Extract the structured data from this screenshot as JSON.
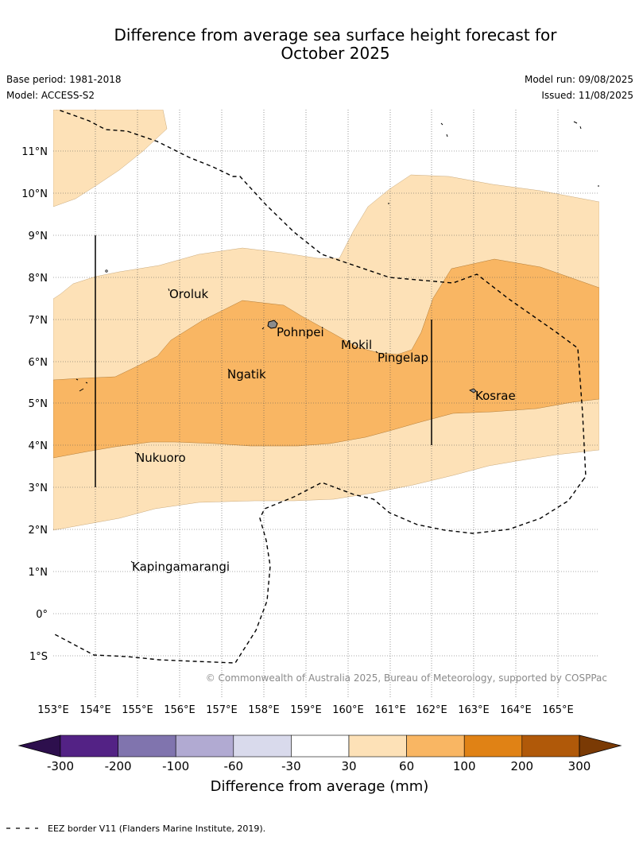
{
  "header": {
    "title_line1": "Difference from average sea surface height forecast for",
    "title_line2": "October 2025",
    "base_period": "Base period: 1981-2018",
    "model": "Model: ACCESS-S2",
    "model_run": "Model run: 09/08/2025",
    "issued": "Issued: 11/08/2025"
  },
  "map": {
    "lat_labels": [
      "11°N",
      "10°N",
      "9°N",
      "8°N",
      "7°N",
      "6°N",
      "5°N",
      "4°N",
      "3°N",
      "2°N",
      "1°N",
      "0°",
      "1°S"
    ],
    "lon_labels": [
      "153°E",
      "154°E",
      "155°E",
      "156°E",
      "157°E",
      "158°E",
      "159°E",
      "160°E",
      "161°E",
      "162°E",
      "163°E",
      "164°E",
      "165°E"
    ],
    "places": {
      "oroluk": "Oroluk",
      "pohnpei": "Pohnpei",
      "mokil": "Mokil",
      "pingelap": "Pingelap",
      "ngatik": "Ngatik",
      "kosrae": "Kosrae",
      "nukuoro": "Nukuoro",
      "kapingamarangi": "Kapingamarangi"
    },
    "copyright": "© Commonwealth of Australia 2025, Bureau of Meteorology, supported by COSPPac"
  },
  "legend": {
    "title": "Difference from average (mm)",
    "ticks": [
      "-300",
      "-200",
      "-100",
      "-60",
      "-30",
      "30",
      "60",
      "100",
      "200",
      "300"
    ],
    "colors": {
      "lt_-300": "#2d0f4d",
      "-300_-200": "#532285",
      "-200_-100": "#8074ae",
      "-100_-60": "#b1aad2",
      "-60_-30": "#d9daec",
      "-30_30": "#ffffff",
      "30_60": "#fde1b7",
      "60_100": "#f9b663",
      "100_200": "#e08215",
      "200_300": "#b05909",
      "gt_300": "#7a3a05"
    }
  },
  "footer": {
    "eez_note": "EEZ border V11 (Flanders Marine Institute, 2019)."
  }
}
